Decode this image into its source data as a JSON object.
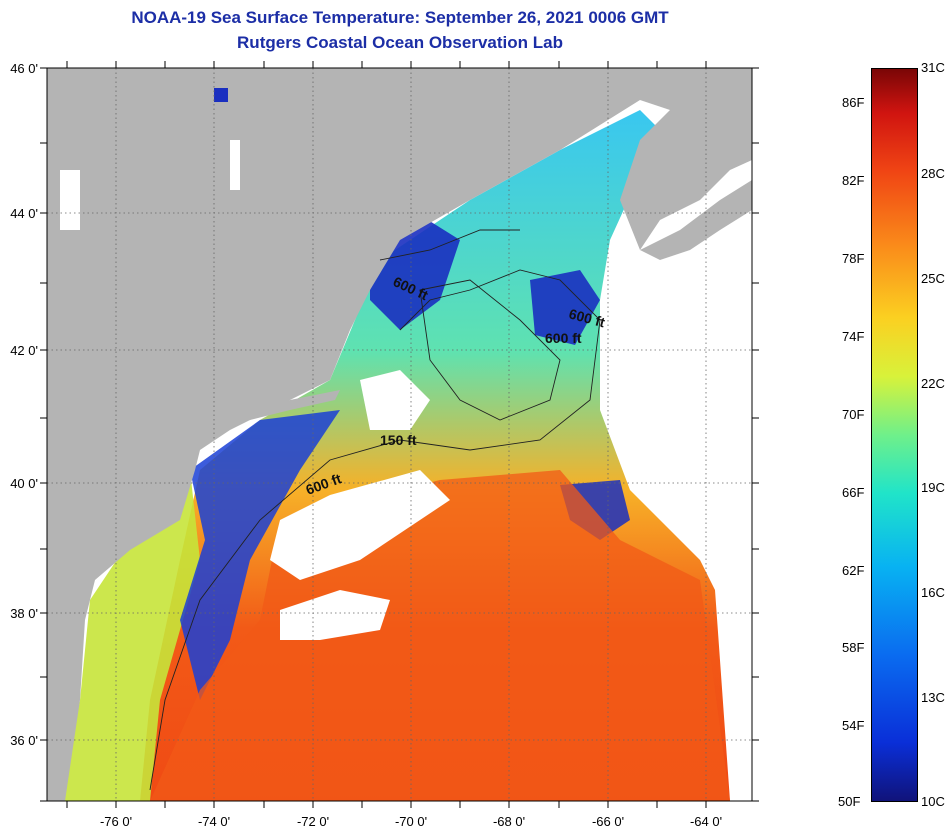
{
  "title_line1": "NOAA-19 Sea Surface Temperature:  September 26, 2021 0006 GMT",
  "title_line2": "Rutgers Coastal Ocean Observation Lab",
  "map": {
    "lat_ticks": [
      "46 0'",
      "44 0'",
      "42 0'",
      "40 0'",
      "38 0'",
      "36 0'"
    ],
    "lon_ticks": [
      "-76 0'",
      "-74 0'",
      "-72 0'",
      "-70 0'",
      "-68 0'",
      "-66 0'",
      "-64 0'"
    ],
    "isobaths": [
      "600 ft",
      "600 ft",
      "600 ft",
      "150 ft",
      "600 ft"
    ]
  },
  "colorbar": {
    "fahrenheit": [
      "86F",
      "82F",
      "78F",
      "74F",
      "70F",
      "66F",
      "62F",
      "58F",
      "54F",
      "50F"
    ],
    "celsius": [
      "31C",
      "28C",
      "25C",
      "22C",
      "19C",
      "16C",
      "13C",
      "10C"
    ]
  },
  "colors": {
    "title": "#1c2ea6",
    "land": "#b4b4b4",
    "cloud": "#ffffff"
  }
}
